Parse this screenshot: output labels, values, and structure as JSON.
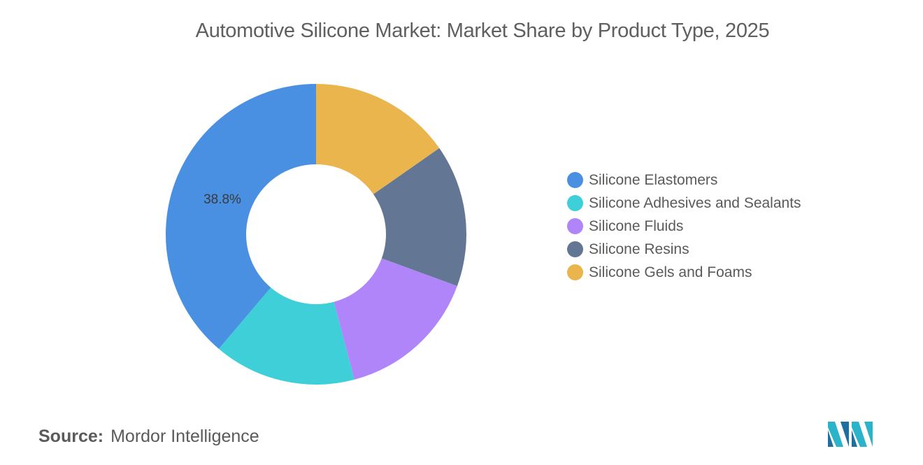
{
  "chart_data": {
    "type": "pie",
    "style": "donut",
    "title": "Automotive Silicone Market: Market Share by Product Type, 2025",
    "series": [
      {
        "name": "Silicone Elastomers",
        "value": 38.8,
        "color": "#4a90e2",
        "label": "38.8%"
      },
      {
        "name": "Silicone Adhesives and Sealants",
        "value": 15.3,
        "color": "#3ecfd8",
        "label": ""
      },
      {
        "name": "Silicone Fluids",
        "value": 15.3,
        "color": "#b085f9",
        "label": ""
      },
      {
        "name": "Silicone Resins",
        "value": 15.3,
        "color": "#637694",
        "label": ""
      },
      {
        "name": "Silicone Gels and Foams",
        "value": 15.3,
        "color": "#eab54d",
        "label": ""
      }
    ],
    "legend_position": "right"
  },
  "source": {
    "label": "Source:",
    "value": "Mordor Intelligence"
  },
  "logo": {
    "icon": "mordor-intelligence-logo",
    "colors": [
      "#2ab3c9",
      "#1f6e9e"
    ]
  }
}
